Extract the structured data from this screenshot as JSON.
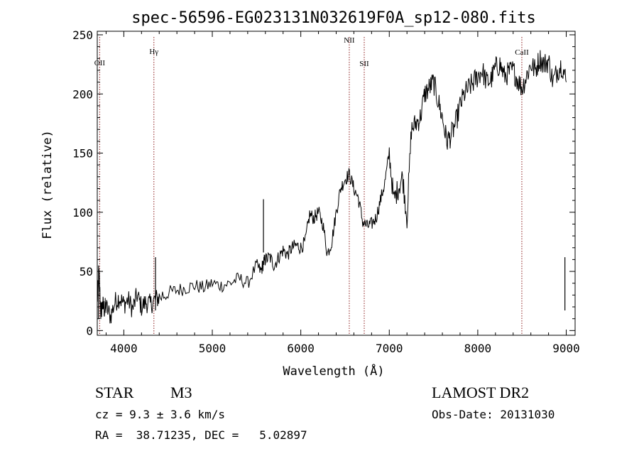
{
  "chart_data": {
    "type": "line",
    "title": "spec-56596-EG023131N032619F0A_sp12-080.fits",
    "xlabel": "Wavelength (Å)",
    "ylabel": "Flux (relative)",
    "xlim": [
      3700,
      9100
    ],
    "ylim": [
      -4,
      253
    ],
    "x_ticks": [
      4000,
      5000,
      6000,
      7000,
      8000,
      9000
    ],
    "y_ticks": [
      0,
      50,
      100,
      150,
      200,
      250
    ],
    "grid": false,
    "line_color": "#000000",
    "marker_color": "#8b1a1a",
    "series": [
      {
        "values_x": [
          3700,
          3720,
          3740,
          3760,
          3780,
          3800,
          3850,
          3900,
          3950,
          4000,
          4050,
          4100,
          4150,
          4200,
          4250,
          4300,
          4350,
          4400,
          4500,
          4600,
          4700,
          4800,
          4900,
          5000,
          5100,
          5200,
          5300,
          5400,
          5500,
          5550,
          5580,
          5600,
          5650,
          5700,
          5750,
          5800,
          5850,
          5900,
          5950,
          6000,
          6050,
          6100,
          6150,
          6200,
          6250,
          6300,
          6350,
          6400,
          6450,
          6500,
          6550,
          6600,
          6650,
          6700,
          6750,
          6800,
          6850,
          6900,
          6950,
          7000,
          7050,
          7100,
          7150,
          7200,
          7250,
          7300,
          7350,
          7400,
          7450,
          7500,
          7550,
          7600,
          7650,
          7700,
          7750,
          7800,
          7850,
          7900,
          7950,
          8000,
          8050,
          8100,
          8150,
          8200,
          8250,
          8300,
          8350,
          8400,
          8450,
          8500,
          8550,
          8600,
          8650,
          8700,
          8750,
          8800,
          8850,
          8900,
          8950,
          9000
        ],
        "values_y": [
          25,
          48,
          15,
          22,
          18,
          20,
          12,
          24,
          28,
          22,
          26,
          18,
          30,
          20,
          24,
          22,
          26,
          28,
          32,
          34,
          36,
          38,
          36,
          40,
          38,
          40,
          44,
          40,
          55,
          50,
          58,
          60,
          62,
          55,
          62,
          68,
          64,
          70,
          72,
          70,
          75,
          98,
          95,
          100,
          90,
          65,
          75,
          100,
          120,
          128,
          132,
          120,
          112,
          92,
          88,
          90,
          95,
          110,
          125,
          150,
          110,
          120,
          130,
          95,
          170,
          175,
          180,
          200,
          205,
          210,
          195,
          180,
          160,
          165,
          175,
          190,
          200,
          205,
          210,
          215,
          220,
          210,
          212,
          222,
          225,
          215,
          218,
          220,
          212,
          205,
          215,
          225,
          220,
          230,
          225,
          228,
          210,
          220,
          225,
          210
        ]
      }
    ],
    "spikes": [
      {
        "x": 3715,
        "y": 55
      },
      {
        "x": 4358,
        "y": 62
      },
      {
        "x": 5578,
        "y": 111
      },
      {
        "x": 8985,
        "y": 62
      }
    ],
    "line_markers": [
      {
        "label": "OII",
        "x": 3727
      },
      {
        "label": "Hγ",
        "x": 4340
      },
      {
        "label": "NII",
        "x": 6548
      },
      {
        "label": "SII",
        "x": 6717
      },
      {
        "label": "CaII",
        "x": 8498
      }
    ]
  },
  "info": {
    "class": "STAR",
    "subclass": "M3",
    "survey": "LAMOST DR2",
    "cz": "cz = 9.3 ± 3.6 km/s",
    "obs_date": "Obs-Date: 20131030",
    "coords": "RA =  38.71235, DEC =   5.02897"
  }
}
